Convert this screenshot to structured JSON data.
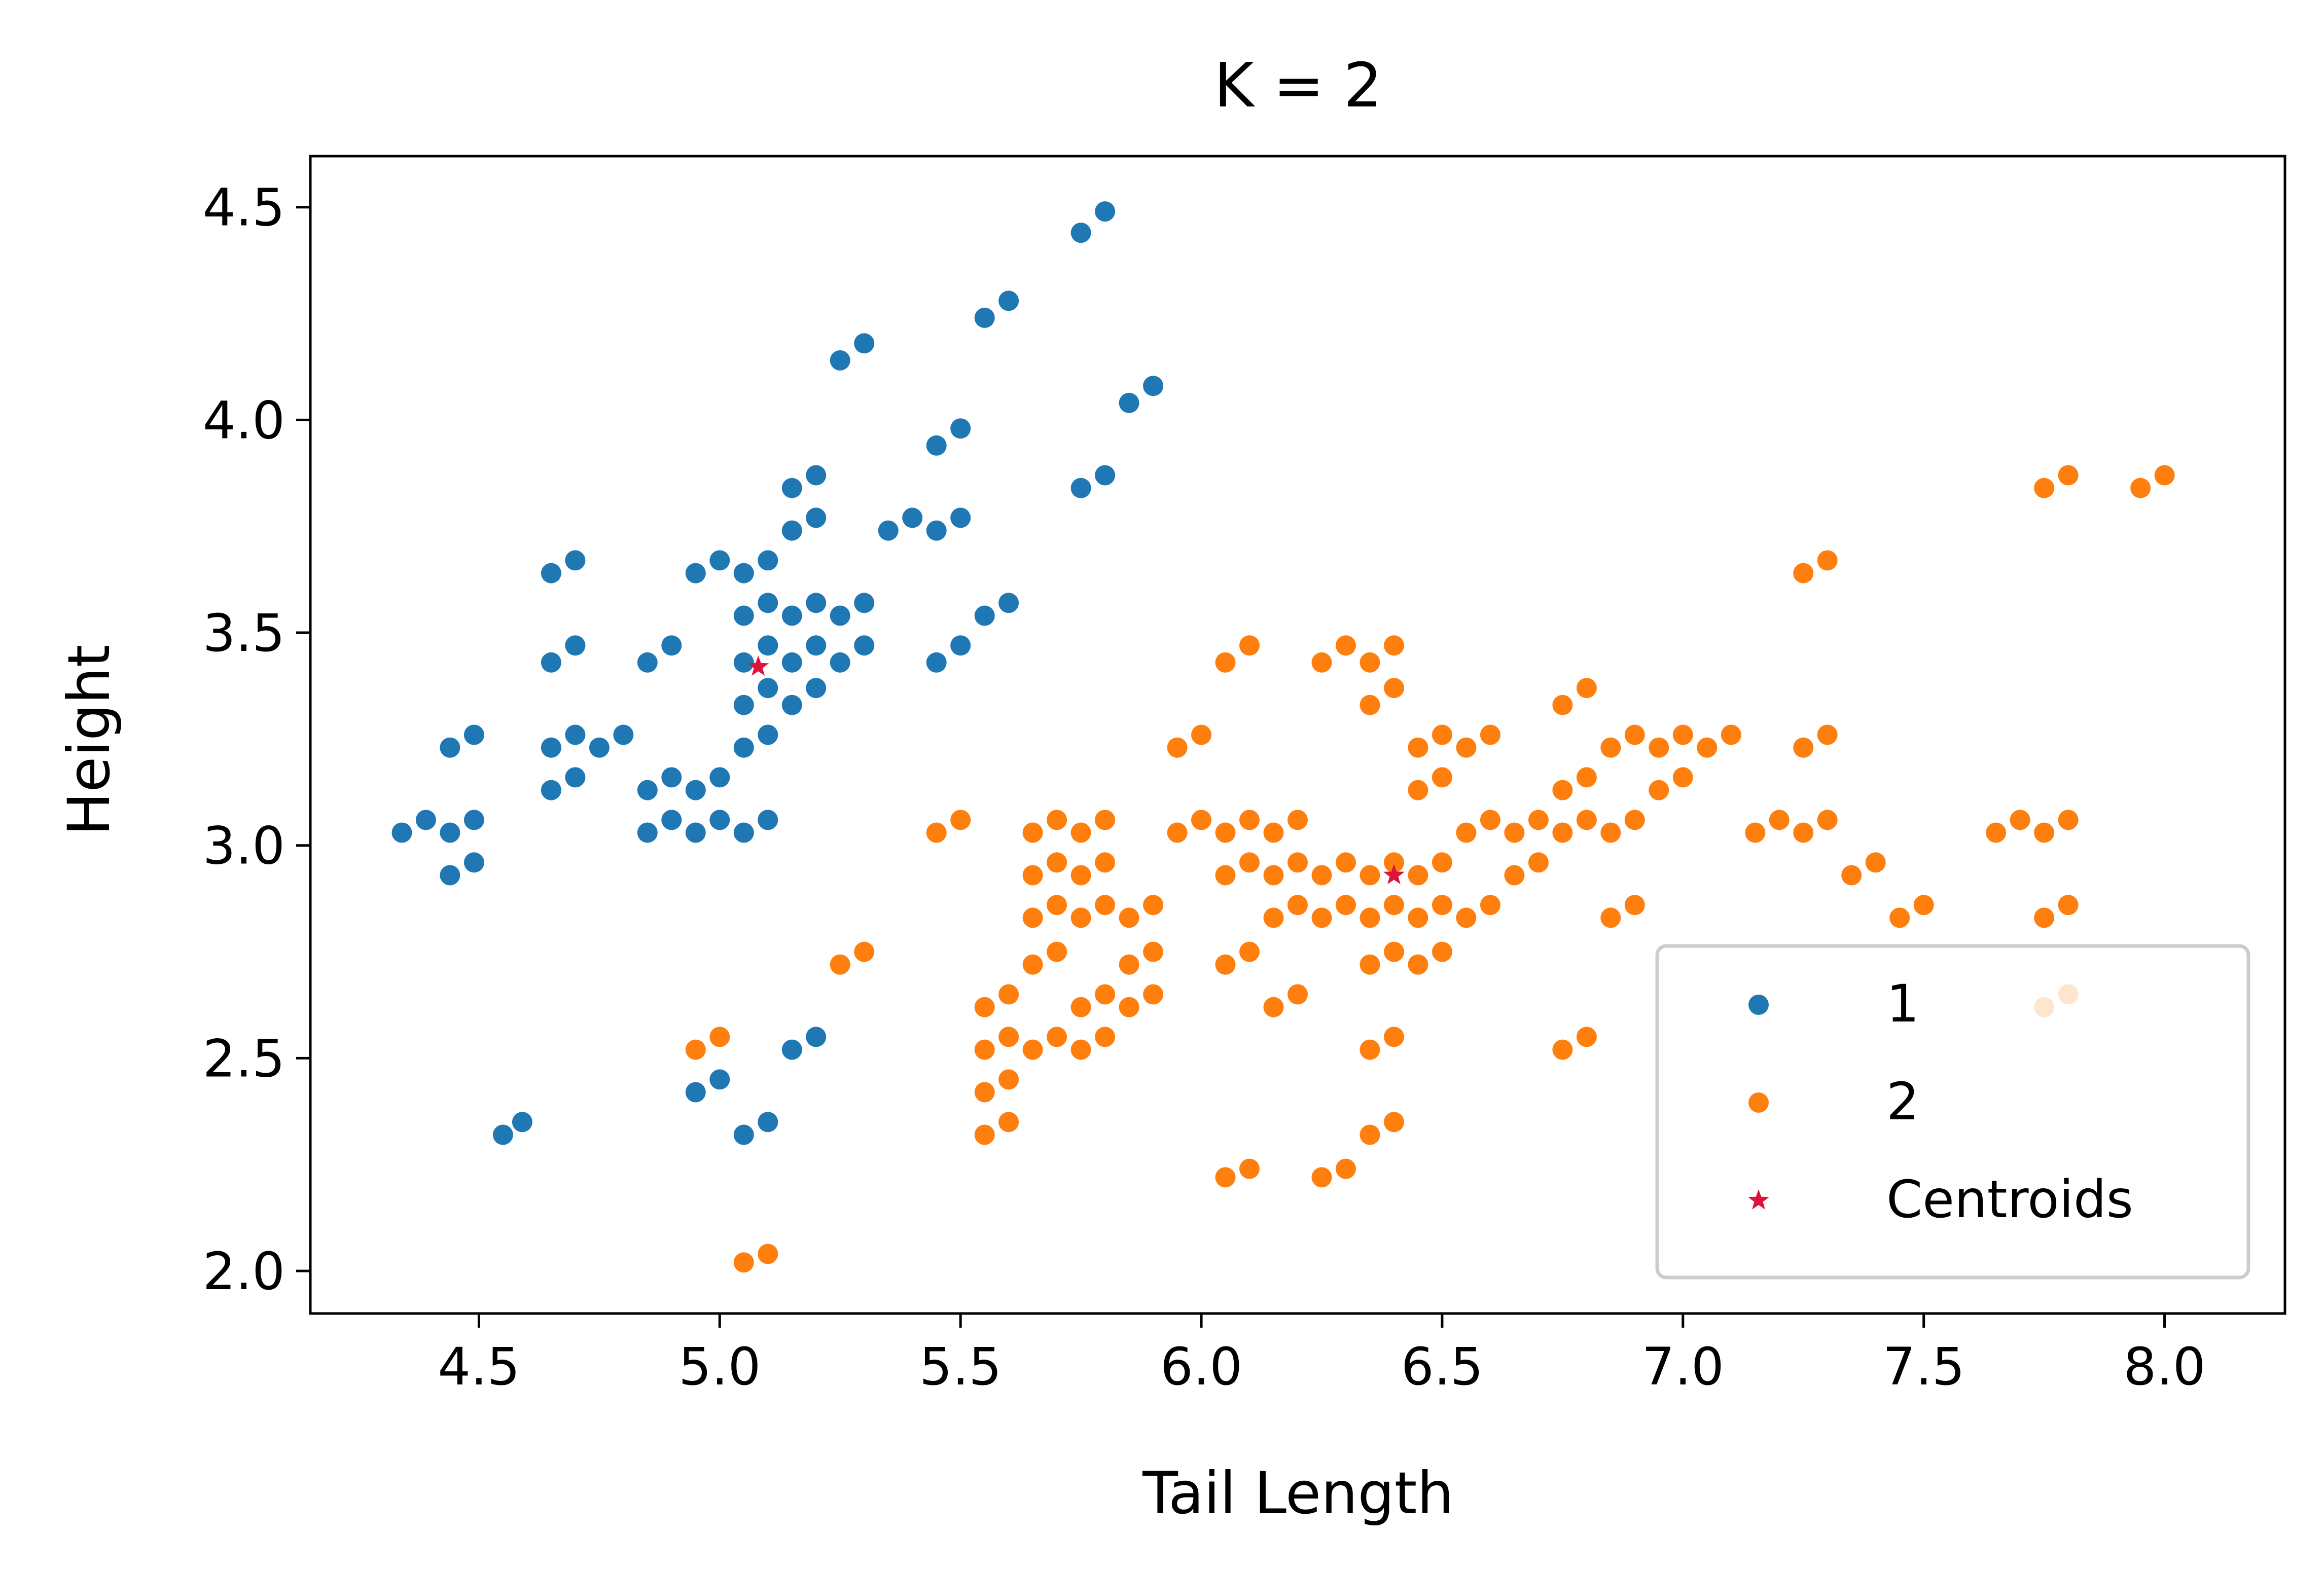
{
  "chart_data": {
    "type": "scatter",
    "title": "K = 2",
    "xlabel": "Tail Length",
    "ylabel": "Height",
    "xlim": [
      4.15,
      8.25
    ],
    "ylim": [
      1.9,
      4.62
    ],
    "xticks": [
      "4.5",
      "5.0",
      "5.5",
      "6.0",
      "6.5",
      "7.0",
      "7.5",
      "8.0"
    ],
    "yticks": [
      "2.0",
      "2.5",
      "3.0",
      "3.5",
      "4.0",
      "4.5"
    ],
    "grid": false,
    "legend_position": "lower-right",
    "series": [
      {
        "name": "1",
        "color": "#1f77b4",
        "marker": "circle",
        "points": [
          [
            4.34,
            3.03
          ],
          [
            4.39,
            3.06
          ],
          [
            4.44,
            3.03
          ],
          [
            4.44,
            2.93
          ],
          [
            4.49,
            2.96
          ],
          [
            4.49,
            3.06
          ],
          [
            4.44,
            3.23
          ],
          [
            4.49,
            3.26
          ],
          [
            4.65,
            3.64
          ],
          [
            4.7,
            3.67
          ],
          [
            4.65,
            3.43
          ],
          [
            4.7,
            3.47
          ],
          [
            4.65,
            3.23
          ],
          [
            4.7,
            3.26
          ],
          [
            4.65,
            3.13
          ],
          [
            4.7,
            3.16
          ],
          [
            4.75,
            3.23
          ],
          [
            4.8,
            3.26
          ],
          [
            4.85,
            3.43
          ],
          [
            4.9,
            3.47
          ],
          [
            4.85,
            3.13
          ],
          [
            4.9,
            3.16
          ],
          [
            4.85,
            3.03
          ],
          [
            4.9,
            3.06
          ],
          [
            4.95,
            3.13
          ],
          [
            5.0,
            3.16
          ],
          [
            4.95,
            3.03
          ],
          [
            5.0,
            3.06
          ],
          [
            5.05,
            3.03
          ],
          [
            5.1,
            3.06
          ],
          [
            4.95,
            3.64
          ],
          [
            5.0,
            3.67
          ],
          [
            5.05,
            3.64
          ],
          [
            5.1,
            3.67
          ],
          [
            5.05,
            3.54
          ],
          [
            5.1,
            3.57
          ],
          [
            5.05,
            3.43
          ],
          [
            5.1,
            3.47
          ],
          [
            5.05,
            3.33
          ],
          [
            5.1,
            3.37
          ],
          [
            5.05,
            3.23
          ],
          [
            5.1,
            3.26
          ],
          [
            5.15,
            3.33
          ],
          [
            5.2,
            3.37
          ],
          [
            5.15,
            3.43
          ],
          [
            5.2,
            3.47
          ],
          [
            5.15,
            3.54
          ],
          [
            5.2,
            3.57
          ],
          [
            5.25,
            3.43
          ],
          [
            5.3,
            3.47
          ],
          [
            5.25,
            3.54
          ],
          [
            5.3,
            3.57
          ],
          [
            5.15,
            3.74
          ],
          [
            5.2,
            3.77
          ],
          [
            5.15,
            3.84
          ],
          [
            5.2,
            3.87
          ],
          [
            5.35,
            3.74
          ],
          [
            5.4,
            3.77
          ],
          [
            5.45,
            3.74
          ],
          [
            5.5,
            3.77
          ],
          [
            5.45,
            3.94
          ],
          [
            5.5,
            3.98
          ],
          [
            5.25,
            4.14
          ],
          [
            5.3,
            4.18
          ],
          [
            5.55,
            4.24
          ],
          [
            5.6,
            4.28
          ],
          [
            5.75,
            4.44
          ],
          [
            5.8,
            4.49
          ],
          [
            5.85,
            4.04
          ],
          [
            5.9,
            4.08
          ],
          [
            5.75,
            3.84
          ],
          [
            5.8,
            3.87
          ],
          [
            5.55,
            3.54
          ],
          [
            5.6,
            3.57
          ],
          [
            5.45,
            3.43
          ],
          [
            5.5,
            3.47
          ],
          [
            4.55,
            2.32
          ],
          [
            4.59,
            2.35
          ],
          [
            4.95,
            2.42
          ],
          [
            5.0,
            2.45
          ],
          [
            5.05,
            2.32
          ],
          [
            5.1,
            2.35
          ],
          [
            5.15,
            2.52
          ],
          [
            5.2,
            2.55
          ]
        ]
      },
      {
        "name": "2",
        "color": "#ff7f0e",
        "marker": "circle",
        "points": [
          [
            4.95,
            2.52
          ],
          [
            5.0,
            2.55
          ],
          [
            5.05,
            2.02
          ],
          [
            5.1,
            2.04
          ],
          [
            5.25,
            2.72
          ],
          [
            5.3,
            2.75
          ],
          [
            5.45,
            3.03
          ],
          [
            5.5,
            3.06
          ],
          [
            5.55,
            2.62
          ],
          [
            5.6,
            2.65
          ],
          [
            5.55,
            2.52
          ],
          [
            5.6,
            2.55
          ],
          [
            5.55,
            2.42
          ],
          [
            5.6,
            2.45
          ],
          [
            5.55,
            2.32
          ],
          [
            5.6,
            2.35
          ],
          [
            5.65,
            2.52
          ],
          [
            5.7,
            2.55
          ],
          [
            5.65,
            2.72
          ],
          [
            5.7,
            2.75
          ],
          [
            5.65,
            2.83
          ],
          [
            5.7,
            2.86
          ],
          [
            5.65,
            2.93
          ],
          [
            5.7,
            2.96
          ],
          [
            5.65,
            3.03
          ],
          [
            5.7,
            3.06
          ],
          [
            5.75,
            3.03
          ],
          [
            5.8,
            3.06
          ],
          [
            5.75,
            2.93
          ],
          [
            5.8,
            2.96
          ],
          [
            5.75,
            2.83
          ],
          [
            5.8,
            2.86
          ],
          [
            5.75,
            2.62
          ],
          [
            5.8,
            2.65
          ],
          [
            5.75,
            2.52
          ],
          [
            5.8,
            2.55
          ],
          [
            5.85,
            2.62
          ],
          [
            5.9,
            2.65
          ],
          [
            5.85,
            2.72
          ],
          [
            5.9,
            2.75
          ],
          [
            5.85,
            2.83
          ],
          [
            5.9,
            2.86
          ],
          [
            5.95,
            3.03
          ],
          [
            6.0,
            3.06
          ],
          [
            5.95,
            3.23
          ],
          [
            6.0,
            3.26
          ],
          [
            6.05,
            2.93
          ],
          [
            6.1,
            2.96
          ],
          [
            6.05,
            3.03
          ],
          [
            6.1,
            3.06
          ],
          [
            6.05,
            2.72
          ],
          [
            6.1,
            2.75
          ],
          [
            6.05,
            3.43
          ],
          [
            6.1,
            3.47
          ],
          [
            6.05,
            2.22
          ],
          [
            6.1,
            2.24
          ],
          [
            6.15,
            2.62
          ],
          [
            6.2,
            2.65
          ],
          [
            6.15,
            2.83
          ],
          [
            6.2,
            2.86
          ],
          [
            6.15,
            2.93
          ],
          [
            6.2,
            2.96
          ],
          [
            6.15,
            3.03
          ],
          [
            6.2,
            3.06
          ],
          [
            6.25,
            2.83
          ],
          [
            6.3,
            2.86
          ],
          [
            6.25,
            2.93
          ],
          [
            6.3,
            2.96
          ],
          [
            6.25,
            3.43
          ],
          [
            6.3,
            3.47
          ],
          [
            6.25,
            2.22
          ],
          [
            6.3,
            2.24
          ],
          [
            6.35,
            3.43
          ],
          [
            6.4,
            3.47
          ],
          [
            6.35,
            3.33
          ],
          [
            6.4,
            3.37
          ],
          [
            6.35,
            2.93
          ],
          [
            6.4,
            2.96
          ],
          [
            6.35,
            2.83
          ],
          [
            6.4,
            2.86
          ],
          [
            6.35,
            2.72
          ],
          [
            6.4,
            2.75
          ],
          [
            6.35,
            2.52
          ],
          [
            6.4,
            2.55
          ],
          [
            6.35,
            2.32
          ],
          [
            6.4,
            2.35
          ],
          [
            6.45,
            2.72
          ],
          [
            6.5,
            2.75
          ],
          [
            6.45,
            2.83
          ],
          [
            6.5,
            2.86
          ],
          [
            6.45,
            2.93
          ],
          [
            6.5,
            2.96
          ],
          [
            6.45,
            3.13
          ],
          [
            6.5,
            3.16
          ],
          [
            6.45,
            3.23
          ],
          [
            6.5,
            3.26
          ],
          [
            6.55,
            3.23
          ],
          [
            6.6,
            3.26
          ],
          [
            6.55,
            3.03
          ],
          [
            6.6,
            3.06
          ],
          [
            6.55,
            2.83
          ],
          [
            6.6,
            2.86
          ],
          [
            6.65,
            2.93
          ],
          [
            6.7,
            2.96
          ],
          [
            6.65,
            3.03
          ],
          [
            6.7,
            3.06
          ],
          [
            6.75,
            3.03
          ],
          [
            6.8,
            3.06
          ],
          [
            6.75,
            3.13
          ],
          [
            6.8,
            3.16
          ],
          [
            6.75,
            3.33
          ],
          [
            6.8,
            3.37
          ],
          [
            6.75,
            2.52
          ],
          [
            6.8,
            2.55
          ],
          [
            6.85,
            2.83
          ],
          [
            6.9,
            2.86
          ],
          [
            6.85,
            3.03
          ],
          [
            6.9,
            3.06
          ],
          [
            6.85,
            3.23
          ],
          [
            6.9,
            3.26
          ],
          [
            6.95,
            3.13
          ],
          [
            7.0,
            3.16
          ],
          [
            6.95,
            3.23
          ],
          [
            7.0,
            3.26
          ],
          [
            7.05,
            3.23
          ],
          [
            7.1,
            3.26
          ],
          [
            7.15,
            3.03
          ],
          [
            7.2,
            3.06
          ],
          [
            7.25,
            3.03
          ],
          [
            7.3,
            3.06
          ],
          [
            7.25,
            3.23
          ],
          [
            7.3,
            3.26
          ],
          [
            7.25,
            3.64
          ],
          [
            7.3,
            3.67
          ],
          [
            7.35,
            2.93
          ],
          [
            7.4,
            2.96
          ],
          [
            7.45,
            2.83
          ],
          [
            7.5,
            2.86
          ],
          [
            7.65,
            3.03
          ],
          [
            7.7,
            3.06
          ],
          [
            7.75,
            3.03
          ],
          [
            7.8,
            3.06
          ],
          [
            7.75,
            2.83
          ],
          [
            7.8,
            2.86
          ],
          [
            7.75,
            2.62
          ],
          [
            7.8,
            2.65
          ],
          [
            7.75,
            3.84
          ],
          [
            7.8,
            3.87
          ],
          [
            7.95,
            3.84
          ],
          [
            8.0,
            3.87
          ]
        ]
      }
    ],
    "centroids": {
      "name": "Centroids",
      "color": "#dc143c",
      "marker": "star",
      "points": [
        [
          5.08,
          3.42
        ],
        [
          6.4,
          2.93
        ]
      ]
    }
  }
}
